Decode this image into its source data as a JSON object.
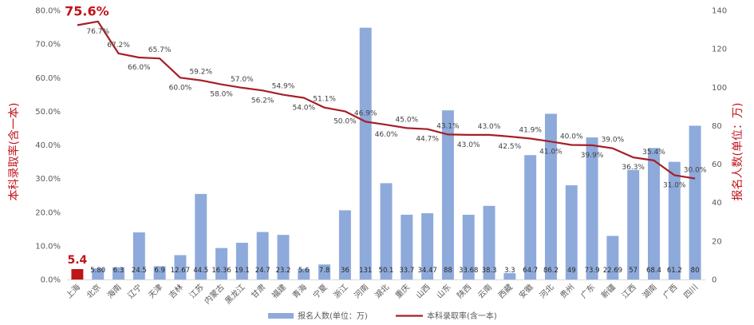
{
  "chart_data": {
    "type": "bar",
    "categories": [
      "上海",
      "北京",
      "海南",
      "辽宁",
      "天津",
      "吉林",
      "江苏",
      "内蒙古",
      "黑龙江",
      "甘肃",
      "福建",
      "青海",
      "宁夏",
      "浙江",
      "河南",
      "湖北",
      "重庆",
      "山西",
      "山东",
      "陕西",
      "云南",
      "西藏",
      "安徽",
      "河北",
      "贵州",
      "广东",
      "新疆",
      "江西",
      "湖南",
      "广西",
      "四川"
    ],
    "series": [
      {
        "name": "报名人数(单位：万)",
        "kind": "bar",
        "axis": "right",
        "values": [
          5.4,
          5.8,
          6.3,
          24.5,
          6.9,
          12.67,
          44.5,
          16.36,
          19.1,
          24.7,
          23.2,
          5.6,
          7.8,
          36,
          131,
          50.1,
          33.7,
          34.47,
          88,
          33.68,
          38.3,
          3.3,
          64.7,
          86.2,
          49,
          73.9,
          22.69,
          57,
          68.4,
          61.2,
          80
        ],
        "labels": [
          "5.4",
          "5.80",
          "6.3",
          "24.5",
          "6.9",
          "12.67",
          "44.5",
          "16.36",
          "19.1",
          "24.7",
          "23.2",
          "5.6",
          "7.8",
          "36",
          "131",
          "50.1",
          "33.7",
          "34.47",
          "88",
          "33.68",
          "38.3",
          "3.3",
          "64.7",
          "86.2",
          "49",
          "73.9",
          "22.69",
          "57",
          "68.4",
          "61.2",
          "80"
        ]
      },
      {
        "name": "本科录取率(含一本)",
        "kind": "line",
        "axis": "left",
        "values": [
          75.6,
          76.7,
          67.2,
          66.0,
          65.7,
          60.0,
          59.2,
          58.0,
          57.0,
          56.2,
          54.9,
          54.0,
          51.1,
          50.0,
          46.9,
          46.0,
          45.0,
          44.7,
          43.1,
          43.0,
          43.0,
          42.5,
          41.9,
          41.0,
          40.0,
          39.9,
          39.0,
          36.3,
          35.4,
          31.0,
          30.0
        ],
        "labels": [
          "75.6%",
          "76.7%",
          "67.2%",
          "66.0%",
          "65.7%",
          "60.0%",
          "59.2%",
          "58.0%",
          "57.0%",
          "56.2%",
          "54.9%",
          "54.0%",
          "51.1%",
          "50.0%",
          "46.9%",
          "46.0%",
          "45.0%",
          "44.7%",
          "43.1%",
          "43.0%",
          "43.0%",
          "42.5%",
          "41.9%",
          "41.0%",
          "40.0%",
          "39.9%",
          "39.0%",
          "36.3%",
          "35.4%",
          "31.0%",
          "30.0%"
        ]
      }
    ],
    "highlight": {
      "category": "上海",
      "bar_label": "5.4",
      "line_label": "75.6%",
      "color": "#c0141b"
    },
    "y_left": {
      "label": "本科录取率(含一本)",
      "ylim": [
        0,
        80
      ],
      "ticks": [
        "0.0%",
        "10.0%",
        "20.0%",
        "30.0%",
        "40.0%",
        "50.0%",
        "60.0%",
        "70.0%",
        "80.0%"
      ],
      "tick_values": [
        0,
        10,
        20,
        30,
        40,
        50,
        60,
        70,
        80
      ]
    },
    "y_right": {
      "label": "报名人数(单位：万)",
      "ylim": [
        0,
        140
      ],
      "ticks": [
        "0",
        "20",
        "40",
        "60",
        "80",
        "100",
        "120",
        "140"
      ],
      "tick_values": [
        0,
        20,
        40,
        60,
        80,
        100,
        120,
        140
      ]
    },
    "legend": {
      "placement": "bottom",
      "items": [
        "报名人数(单位：万)",
        "本科录取率(含一本)"
      ]
    },
    "grid": false,
    "colors": {
      "bar": "#8eaadb",
      "line": "#a51f26",
      "highlight": "#c0141b",
      "axis_title": "#c0141b"
    }
  }
}
